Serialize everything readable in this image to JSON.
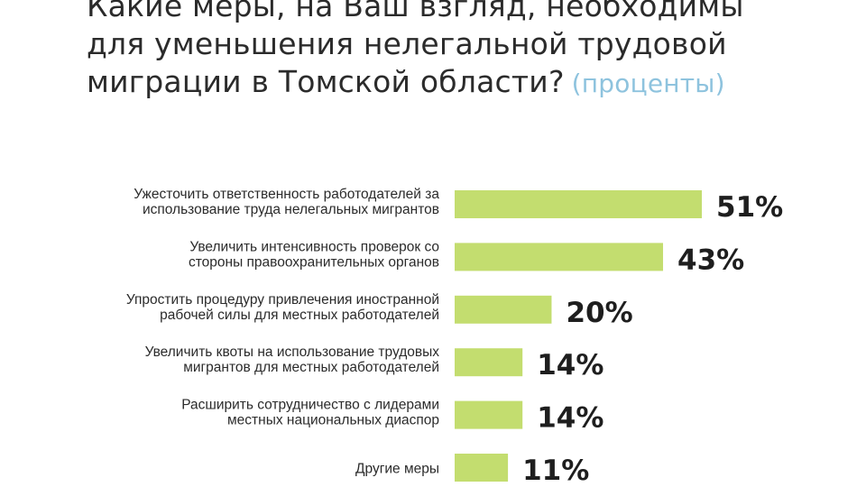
{
  "title": {
    "lines": [
      "Какие меры, на Ваш взгляд, необходимы",
      "для уменьшения нелегальной трудовой",
      "миграции в Томской области?"
    ],
    "unit": "(проценты)"
  },
  "colors": {
    "bar": "#c3dd6f",
    "unit_text": "#8ec3de"
  },
  "chart_data": {
    "type": "bar",
    "orientation": "horizontal",
    "categories": [
      [
        "Ужесточить ответственность работодателей за",
        "использование труда нелегальных мигрантов"
      ],
      [
        "Увеличить интенсивность проверок со",
        "стороны правоохранительных органов"
      ],
      [
        "Упростить процедуру привлечения иностранной",
        "рабочей силы для местных работодателей"
      ],
      [
        "Увеличить квоты на использование трудовых",
        "мигрантов для местных работодателей"
      ],
      [
        "Расширить сотрудничество с лидерами",
        "местных национальных диаспор"
      ],
      [
        "Другие меры"
      ]
    ],
    "values": [
      51,
      43,
      20,
      14,
      14,
      11
    ],
    "value_labels": [
      "51%",
      "43%",
      "20%",
      "14%",
      "14%",
      "11%"
    ],
    "unit": "%",
    "grid": false,
    "legend": "none"
  }
}
